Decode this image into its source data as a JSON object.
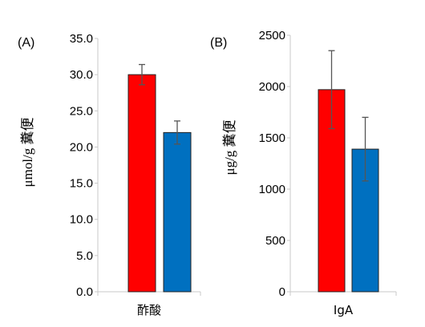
{
  "chart_data": [
    {
      "type": "bar",
      "panel_label": "(A)",
      "ylabel": "μmol/g 糞便",
      "categories": [
        "酢酸"
      ],
      "series": [
        {
          "color": "#ff0000",
          "values": [
            30.0
          ],
          "error": [
            1.4
          ]
        },
        {
          "color": "#0070c0",
          "values": [
            22.0
          ],
          "error": [
            1.6
          ]
        }
      ],
      "ylim": [
        0,
        35
      ],
      "yticks": [
        "0.0",
        "5.0",
        "10.0",
        "15.0",
        "20.0",
        "25.0",
        "30.0",
        "35.0"
      ],
      "grid": false
    },
    {
      "type": "bar",
      "panel_label": "(B)",
      "ylabel": "μg/g 糞便",
      "categories": [
        "IgA"
      ],
      "series": [
        {
          "color": "#ff0000",
          "values": [
            1970
          ],
          "error": [
            380
          ]
        },
        {
          "color": "#0070c0",
          "values": [
            1390
          ],
          "error": [
            310
          ]
        }
      ],
      "ylim": [
        0,
        2500
      ],
      "yticks": [
        "0",
        "500",
        "1000",
        "1500",
        "2000",
        "2500"
      ],
      "grid": false
    }
  ]
}
